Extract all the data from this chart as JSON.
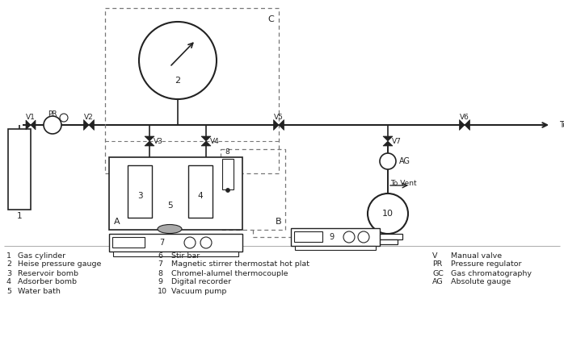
{
  "bg_color": "#ffffff",
  "line_color": "#222222",
  "legend_entries": [
    {
      "num": "1",
      "text": "Gas cylinder"
    },
    {
      "num": "2",
      "text": "Heise pressure gauge"
    },
    {
      "num": "3",
      "text": "Reservoir bomb"
    },
    {
      "num": "4",
      "text": "Adsorber bomb"
    },
    {
      "num": "5",
      "text": "Water bath"
    }
  ],
  "legend_entries2": [
    {
      "num": "6",
      "text": "Stir bar"
    },
    {
      "num": "7",
      "text": "Magnetic stirrer thermostat hot plat"
    },
    {
      "num": "8",
      "text": "Chromel-alumel thermocouple"
    },
    {
      "num": "9",
      "text": "Digital recorder"
    },
    {
      "num": "10",
      "text": "Vacuum pump"
    }
  ],
  "legend_entries3": [
    {
      "num": "V",
      "text": "Manual valve"
    },
    {
      "num": "PR",
      "text": "Pressure regulator"
    },
    {
      "num": "GC",
      "text": "Gas chromatography"
    },
    {
      "num": "AG",
      "text": "Absolute gauge"
    }
  ]
}
